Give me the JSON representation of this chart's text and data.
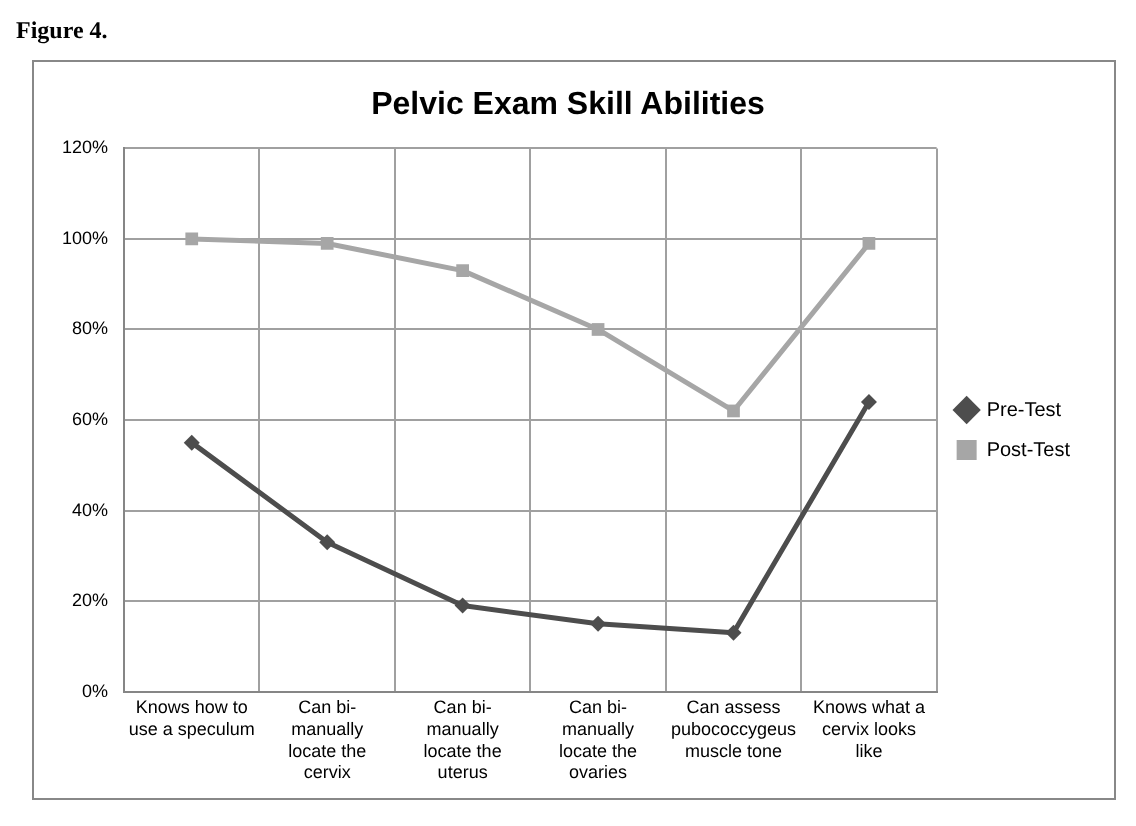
{
  "chart_data": {
    "type": "line",
    "title": "Pelvic Exam Skill Abilities",
    "annotations": [
      "Figure 4."
    ],
    "categories": [
      "Knows how to use a speculum",
      "Can bi-manually locate the cervix",
      "Can bi-manually locate the uterus",
      "Can bi-manually locate the ovaries",
      "Can assess pubococcygeus muscle tone",
      "Knows what a cervix looks like"
    ],
    "series": [
      {
        "name": "Pre-Test",
        "color": "#4d4d4d",
        "values": [
          55,
          33,
          19,
          15,
          13,
          64
        ],
        "marker": "diamond"
      },
      {
        "name": "Post-Test",
        "color": "#a6a6a6",
        "values": [
          100,
          99,
          93,
          80,
          62,
          99
        ],
        "marker": "square"
      }
    ],
    "ylim": [
      0,
      120
    ],
    "yticks": [
      {
        "value": 0,
        "label": "0%"
      },
      {
        "value": 20,
        "label": "20%"
      },
      {
        "value": 40,
        "label": "40%"
      },
      {
        "value": 60,
        "label": "60%"
      },
      {
        "value": 80,
        "label": "80%"
      },
      {
        "value": 100,
        "label": "100%"
      },
      {
        "value": 120,
        "label": "120%"
      }
    ],
    "grid": true,
    "legend": "right",
    "line_style": "solid"
  }
}
